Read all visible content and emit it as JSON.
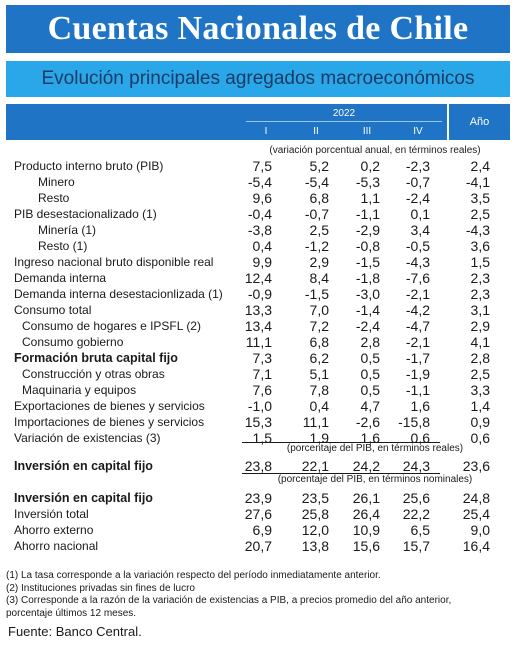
{
  "title": "Cuentas Nacionales de Chile",
  "subtitle": "Evolución principales agregados macroeconómicos",
  "header": {
    "year": "2022",
    "quarters": [
      "I",
      "II",
      "III",
      "IV"
    ],
    "annual": "Año"
  },
  "notes": {
    "n1": "(variación porcentual anual, en términos reales)",
    "n2": "(porcentaje del PIB, en términos reales)",
    "n3": "(porcentaje del PIB, en términos nominales)"
  },
  "rows": [
    {
      "label": "Producto interno bruto (PIB)",
      "values": [
        "7,5",
        "5,2",
        "0,2",
        "-2,3",
        "2,4"
      ]
    },
    {
      "label": "Minero",
      "values": [
        "-5,4",
        "-5,4",
        "-5,3",
        "-0,7",
        "-4,1"
      ]
    },
    {
      "label": "Resto",
      "values": [
        "9,6",
        "6,8",
        "1,1",
        "-2,4",
        "3,5"
      ]
    },
    {
      "label": "PIB desestacionalizado (1)",
      "values": [
        "-0,4",
        "-0,7",
        "-1,1",
        "0,1",
        "2,5"
      ]
    },
    {
      "label": "Minería (1)",
      "values": [
        "-3,8",
        "2,5",
        "-2,9",
        "3,4",
        "-4,3"
      ]
    },
    {
      "label": "Resto (1)",
      "values": [
        "0,4",
        "-1,2",
        "-0,8",
        "-0,5",
        "3,6"
      ]
    },
    {
      "label": "Ingreso nacional bruto disponible real",
      "values": [
        "9,9",
        "2,9",
        "-1,5",
        "-4,3",
        "1,5"
      ]
    },
    {
      "label": "Demanda interna",
      "values": [
        "12,4",
        "8,4",
        "-1,8",
        "-7,6",
        "2,3"
      ]
    },
    {
      "label": "Demanda interna desestacionlizada (1)",
      "values": [
        "-0,9",
        "-1,5",
        "-3,0",
        "-2,1",
        "2,3"
      ]
    },
    {
      "label": "Consumo total",
      "values": [
        "13,3",
        "7,0",
        "-1,4",
        "-4,2",
        "3,1"
      ]
    },
    {
      "label": "Consumo de hogares e IPSFL (2)",
      "values": [
        "13,4",
        "7,2",
        "-2,4",
        "-4,7",
        "2,9"
      ]
    },
    {
      "label": "Consumo gobierno",
      "values": [
        "11,1",
        "6,8",
        "2,8",
        "-2,1",
        "4,1"
      ]
    },
    {
      "label": "Formación bruta capital fijo",
      "values": [
        "7,3",
        "6,2",
        "0,5",
        "-1,7",
        "2,8"
      ]
    },
    {
      "label": "Construcción y otras obras",
      "values": [
        "7,1",
        "5,1",
        "0,5",
        "-1,9",
        "2,5"
      ]
    },
    {
      "label": "Maquinaria y equipos",
      "values": [
        "7,6",
        "7,8",
        "0,5",
        "-1,1",
        "3,3"
      ]
    },
    {
      "label": "Exportaciones de bienes y servicios",
      "values": [
        "-1,0",
        "0,4",
        "4,7",
        "1,6",
        "1,4"
      ]
    },
    {
      "label": "Importaciones de bienes y servicios",
      "values": [
        "15,3",
        "11,1",
        "-2,6",
        "-15,8",
        "0,9"
      ]
    },
    {
      "label": "Variación de existencias (3)",
      "values": [
        "1,5",
        "1,9",
        "1,6",
        "0,6",
        "0,6"
      ]
    },
    {
      "label": "Inversión en capital fijo",
      "values": [
        "23,8",
        "22,1",
        "24,2",
        "24,3",
        "23,6"
      ]
    },
    {
      "label": "Inversión en capital fijo",
      "values": [
        "23,9",
        "23,5",
        "26,1",
        "25,6",
        "24,8"
      ]
    },
    {
      "label": "Inversión total",
      "values": [
        "27,6",
        "25,8",
        "26,4",
        "22,2",
        "25,4"
      ]
    },
    {
      "label": "Ahorro externo",
      "values": [
        "6,9",
        "12,0",
        "10,9",
        "6,5",
        "9,0"
      ]
    },
    {
      "label": "Ahorro nacional",
      "values": [
        "20,7",
        "13,8",
        "15,6",
        "15,7",
        "16,4"
      ]
    }
  ],
  "footnotes": [
    "(1) La tasa corresponde a la variación respecto del período inmediatamente anterior.",
    "(2) Instituciones privadas sin fines de lucro",
    "(3) Corresponde a la razón de la variación de existencias a PIB, a precios promedio del año anterior,",
    "porcentaje últimos 12 meses."
  ],
  "source": "Fuente: Banco Central.",
  "colors": {
    "title_bg": "#1f74c6",
    "subtitle_bg": "#29a7e8",
    "header_bg": "#1f74c6"
  }
}
